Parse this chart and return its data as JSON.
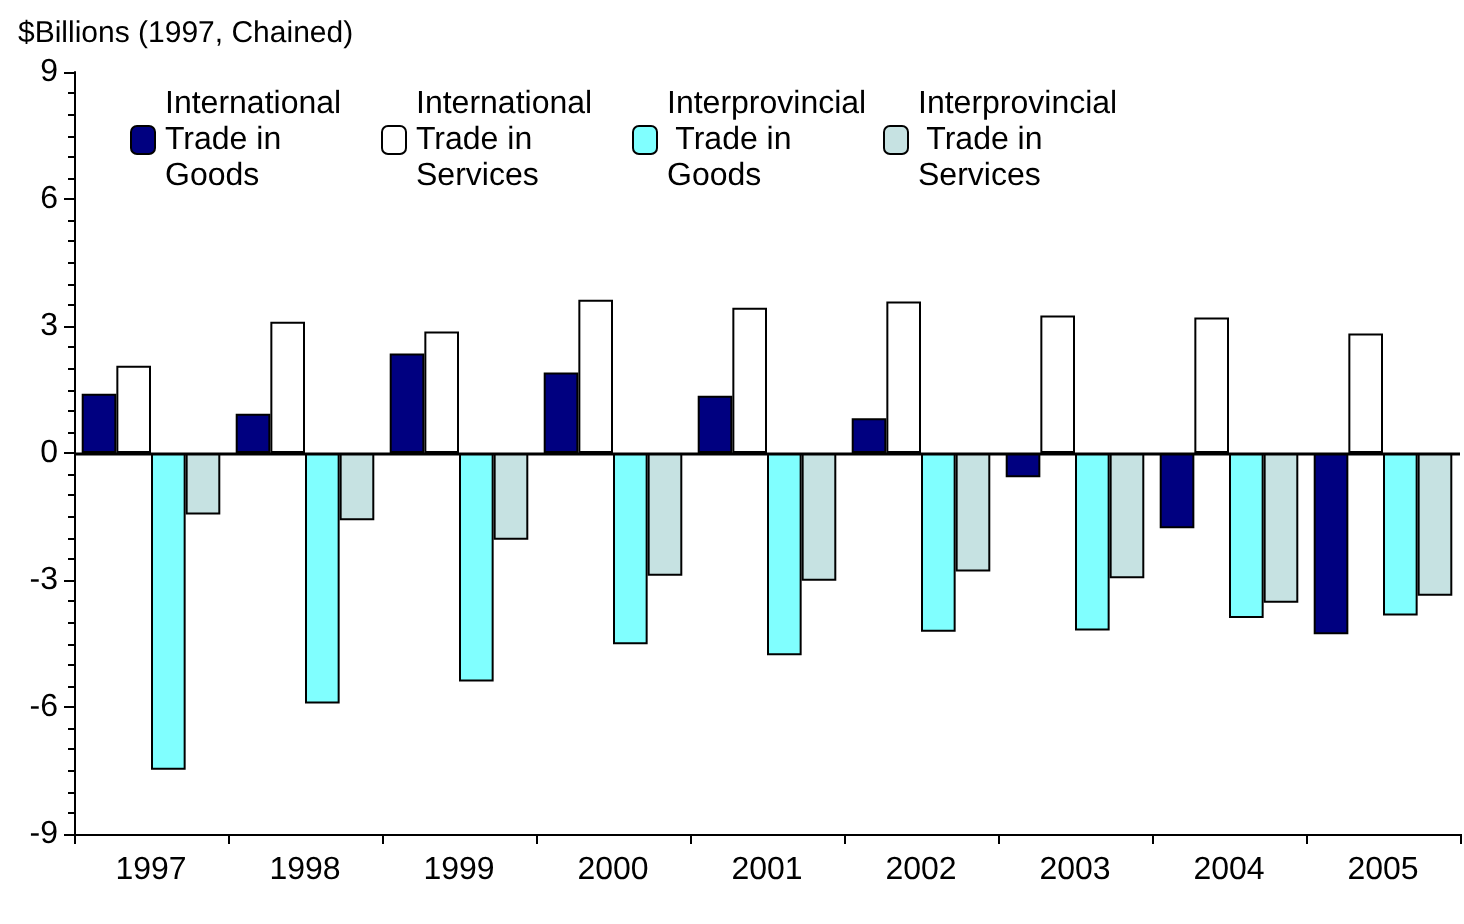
{
  "chart_data": {
    "type": "bar",
    "ylabel": "$Billions (1997, Chained)",
    "categories": [
      "1997",
      "1998",
      "1999",
      "2000",
      "2001",
      "2002",
      "2003",
      "2004",
      "2005"
    ],
    "series": [
      {
        "name": "International Trade in Goods",
        "color": "#000080",
        "values": [
          1.4,
          0.93,
          2.35,
          1.9,
          1.35,
          0.82,
          -0.57,
          -1.78,
          -4.28
        ]
      },
      {
        "name": "International Trade in Services",
        "color": "#ffffff",
        "values": [
          2.06,
          3.1,
          2.87,
          3.62,
          3.43,
          3.58,
          3.25,
          3.2,
          2.82
        ]
      },
      {
        "name": "Interprovincial Trade in Goods",
        "color": "#80ffff",
        "values": [
          -7.48,
          -5.92,
          -5.4,
          -4.52,
          -4.78,
          -4.22,
          -4.19,
          -3.9,
          -3.84
        ]
      },
      {
        "name": "Interprovincial Trade in Services",
        "color": "#c6e2e2",
        "values": [
          -1.45,
          -1.59,
          -2.05,
          -2.9,
          -3.02,
          -2.8,
          -2.96,
          -3.54,
          -3.37
        ]
      }
    ],
    "ylim": [
      -9,
      9
    ],
    "yticks": [
      -9,
      -6,
      -3,
      0,
      3,
      6,
      9
    ],
    "ref_lines": [
      {
        "axis": "y",
        "value": 0,
        "color": "#000000"
      }
    ],
    "grid": false,
    "legend": "top"
  }
}
